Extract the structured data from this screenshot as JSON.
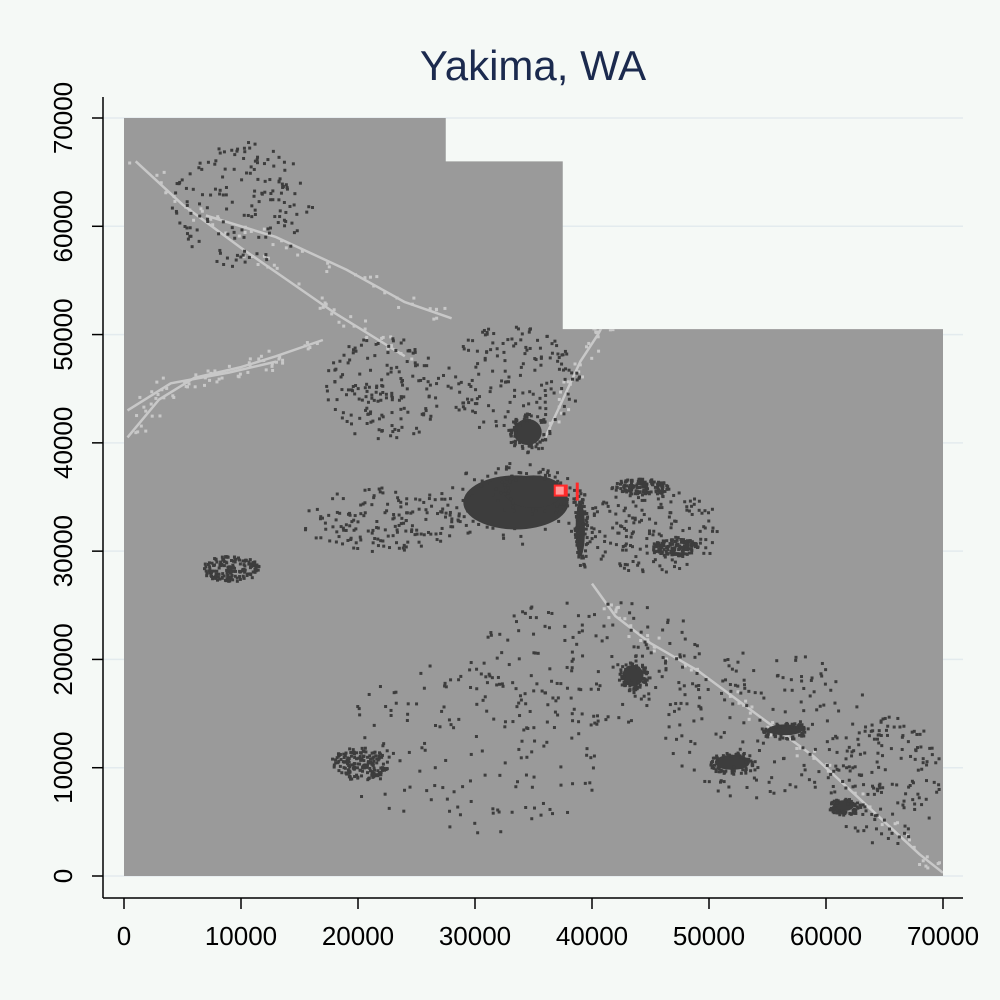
{
  "chart_data": {
    "type": "heatmap",
    "title": "Yakima, WA",
    "xlabel": "",
    "ylabel": "",
    "xlim": [
      0,
      70000
    ],
    "ylim": [
      0,
      70000
    ],
    "x_ticks": [
      "0",
      "10000",
      "20000",
      "30000",
      "40000",
      "50000",
      "60000",
      "70000"
    ],
    "y_ticks": [
      "0",
      "10000",
      "20000",
      "30000",
      "40000",
      "50000",
      "60000",
      "70000"
    ],
    "x_tick_values": [
      0,
      10000,
      20000,
      30000,
      40000,
      50000,
      60000,
      70000
    ],
    "y_tick_values": [
      0,
      10000,
      20000,
      30000,
      40000,
      50000,
      60000,
      70000
    ],
    "grid": "horizontal",
    "legend": "none",
    "colors": {
      "background": "#f5f9f6",
      "region_fill": "#9a9a9a",
      "developed": "#3d3d3d",
      "water": "#c8c8c8",
      "highlight": "#ff2a2a",
      "highlight_inner": "#ff9a9a",
      "gridline": "#e3ebee",
      "title": "#1b2a4e"
    },
    "region_outline": [
      [
        0,
        70000
      ],
      [
        27500,
        70000
      ],
      [
        27500,
        66000
      ],
      [
        37500,
        66000
      ],
      [
        37500,
        50500
      ],
      [
        70000,
        50500
      ],
      [
        70000,
        0
      ],
      [
        0,
        0
      ]
    ],
    "developed_clusters": [
      {
        "cx": 33500,
        "cy": 34500,
        "rx": 4500,
        "ry": 2500,
        "density": "solid"
      },
      {
        "cx": 35000,
        "cy": 35500,
        "rx": 2500,
        "ry": 1500,
        "density": "solid"
      },
      {
        "cx": 39000,
        "cy": 32000,
        "rx": 400,
        "ry": 2500,
        "density": "solid"
      },
      {
        "cx": 43500,
        "cy": 18500,
        "rx": 900,
        "ry": 1000,
        "density": "solid"
      },
      {
        "cx": 52000,
        "cy": 10500,
        "rx": 1500,
        "ry": 700,
        "density": "solid"
      },
      {
        "cx": 56500,
        "cy": 13500,
        "rx": 1500,
        "ry": 500,
        "density": "solid"
      },
      {
        "cx": 61500,
        "cy": 6500,
        "rx": 900,
        "ry": 500,
        "density": "solid"
      },
      {
        "cx": 34500,
        "cy": 41000,
        "rx": 1200,
        "ry": 1200,
        "density": "solid"
      },
      {
        "cx": 44000,
        "cy": 36000,
        "rx": 2500,
        "ry": 800,
        "density": "medium"
      },
      {
        "cx": 47000,
        "cy": 30500,
        "rx": 2000,
        "ry": 800,
        "density": "medium"
      },
      {
        "cx": 33000,
        "cy": 46000,
        "rx": 6000,
        "ry": 5000,
        "density": "sparse"
      },
      {
        "cx": 22000,
        "cy": 45000,
        "rx": 5000,
        "ry": 5000,
        "density": "sparse"
      },
      {
        "cx": 22000,
        "cy": 33000,
        "rx": 7000,
        "ry": 3000,
        "density": "sparse"
      },
      {
        "cx": 45000,
        "cy": 32000,
        "rx": 6000,
        "ry": 4000,
        "density": "sparse"
      },
      {
        "cx": 55000,
        "cy": 14000,
        "rx": 9000,
        "ry": 7000,
        "density": "sparse"
      },
      {
        "cx": 40000,
        "cy": 20000,
        "rx": 10000,
        "ry": 6000,
        "density": "sparse"
      },
      {
        "cx": 30000,
        "cy": 12000,
        "rx": 12000,
        "ry": 8000,
        "density": "sparse"
      },
      {
        "cx": 65000,
        "cy": 9000,
        "rx": 5000,
        "ry": 6000,
        "density": "sparse"
      },
      {
        "cx": 10000,
        "cy": 62000,
        "rx": 6000,
        "ry": 6000,
        "density": "sparse"
      },
      {
        "cx": 9000,
        "cy": 28500,
        "rx": 2500,
        "ry": 1200,
        "density": "sparse"
      },
      {
        "cx": 20000,
        "cy": 10500,
        "rx": 2500,
        "ry": 1500,
        "density": "sparse"
      }
    ],
    "water_lines": [
      [
        [
          1000,
          66000
        ],
        [
          5000,
          62000
        ],
        [
          10000,
          58000
        ],
        [
          14000,
          55000
        ],
        [
          18000,
          52000
        ],
        [
          21000,
          50000
        ],
        [
          24000,
          48000
        ]
      ],
      [
        [
          7000,
          61000
        ],
        [
          13000,
          59000
        ],
        [
          19000,
          56000
        ],
        [
          24000,
          53000
        ],
        [
          28000,
          51500
        ]
      ],
      [
        [
          300,
          40500
        ],
        [
          3000,
          44000
        ],
        [
          6000,
          46000
        ],
        [
          10000,
          47000
        ],
        [
          13000,
          48000
        ],
        [
          17000,
          49500
        ]
      ],
      [
        [
          300,
          43000
        ],
        [
          4000,
          45500
        ],
        [
          9000,
          46500
        ],
        [
          13000,
          47500
        ]
      ],
      [
        [
          36000,
          40500
        ],
        [
          37500,
          44000
        ],
        [
          39000,
          47500
        ],
        [
          40500,
          50000
        ],
        [
          41500,
          52000
        ]
      ],
      [
        [
          40000,
          27000
        ],
        [
          42000,
          24000
        ],
        [
          45000,
          21500
        ],
        [
          49000,
          19000
        ],
        [
          54000,
          15000
        ],
        [
          59000,
          11000
        ],
        [
          63000,
          7000
        ],
        [
          68000,
          2000
        ],
        [
          70000,
          300
        ]
      ]
    ],
    "highlight": {
      "x": 37500,
      "y": 35500,
      "label": ""
    }
  }
}
